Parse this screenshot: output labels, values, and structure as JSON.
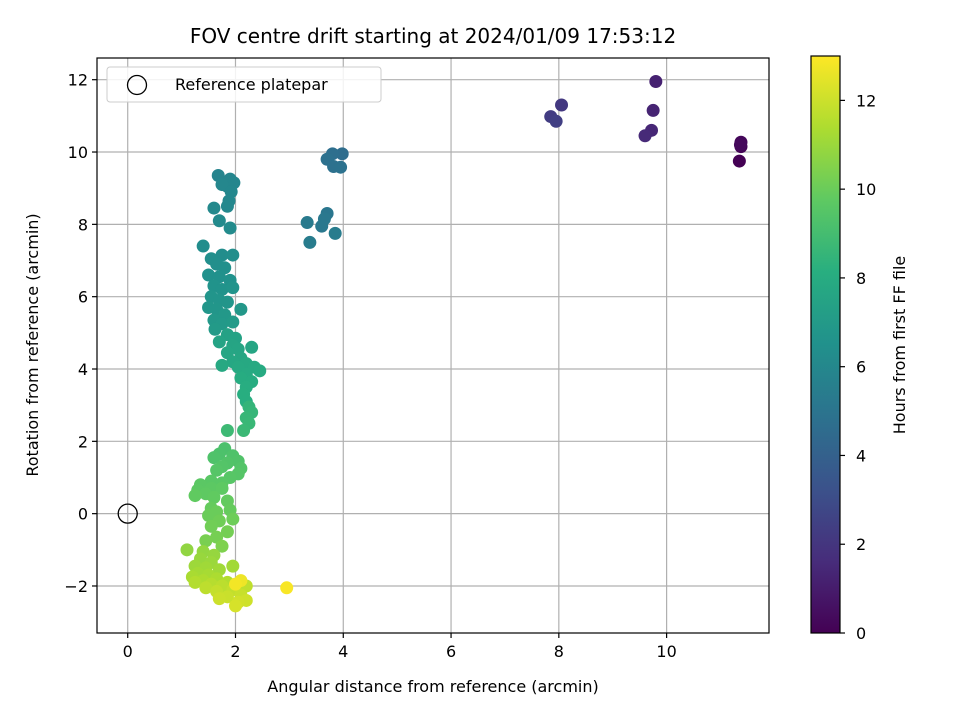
{
  "chart_data": {
    "type": "scatter",
    "title": "FOV centre drift starting at 2024/01/09 17:53:12",
    "xlabel": "Angular distance from reference (arcmin)",
    "ylabel": "Rotation from reference (arcmin)",
    "xlim": [
      -0.57,
      11.9
    ],
    "ylim": [
      -3.3,
      12.6
    ],
    "xticks": [
      "0",
      "2",
      "4",
      "6",
      "8",
      "10"
    ],
    "yticks": [
      "−2",
      "0",
      "2",
      "4",
      "6",
      "8",
      "10",
      "12"
    ],
    "grid": true,
    "legend": {
      "placement": "top-left",
      "entries": [
        "Reference platepar"
      ]
    },
    "reference_point": {
      "x": 0,
      "y": 0,
      "marker": "open-circle"
    },
    "colorbar": {
      "label": "Hours from first FF file",
      "min": 0,
      "max": 13,
      "ticks": [
        "0",
        "2",
        "4",
        "6",
        "8",
        "10",
        "12"
      ],
      "colormap": "viridis"
    },
    "series": [
      {
        "points": [
          [
            11.35,
            9.75,
            0.0
          ],
          [
            11.38,
            10.15,
            0.1
          ],
          [
            11.38,
            10.27,
            0.2
          ],
          [
            11.37,
            10.2,
            0.3
          ],
          [
            9.8,
            11.95,
            1.2
          ],
          [
            9.75,
            11.15,
            1.3
          ],
          [
            9.72,
            10.6,
            1.4
          ],
          [
            9.6,
            10.45,
            1.5
          ],
          [
            8.05,
            11.3,
            2.1
          ],
          [
            7.85,
            10.98,
            2.3
          ],
          [
            7.95,
            10.85,
            2.4
          ],
          [
            3.98,
            9.95,
            4.6
          ],
          [
            3.8,
            9.95,
            4.7
          ],
          [
            3.7,
            9.8,
            4.8
          ],
          [
            3.82,
            9.6,
            4.8
          ],
          [
            3.95,
            9.58,
            4.9
          ],
          [
            3.7,
            8.3,
            5.1
          ],
          [
            3.65,
            8.15,
            5.2
          ],
          [
            3.6,
            7.95,
            5.2
          ],
          [
            3.33,
            8.05,
            5.3
          ],
          [
            3.38,
            7.5,
            5.4
          ],
          [
            3.85,
            7.75,
            5.4
          ],
          [
            1.68,
            9.35,
            5.8
          ],
          [
            1.9,
            9.25,
            5.85
          ],
          [
            1.97,
            9.15,
            5.9
          ],
          [
            1.85,
            9.05,
            5.9
          ],
          [
            1.75,
            9.1,
            5.95
          ],
          [
            1.92,
            8.9,
            6.0
          ],
          [
            1.88,
            8.65,
            6.0
          ],
          [
            1.85,
            8.5,
            6.05
          ],
          [
            1.6,
            8.45,
            6.1
          ],
          [
            1.7,
            8.1,
            6.15
          ],
          [
            1.9,
            7.9,
            6.2
          ],
          [
            1.4,
            7.4,
            6.3
          ],
          [
            1.75,
            7.15,
            6.3
          ],
          [
            1.95,
            7.15,
            6.35
          ],
          [
            1.55,
            7.05,
            6.4
          ],
          [
            1.65,
            6.9,
            6.4
          ],
          [
            1.8,
            6.8,
            6.45
          ],
          [
            1.5,
            6.6,
            6.5
          ],
          [
            1.7,
            6.55,
            6.5
          ],
          [
            1.9,
            6.45,
            6.55
          ],
          [
            1.6,
            6.3,
            6.6
          ],
          [
            1.75,
            6.2,
            6.6
          ],
          [
            1.95,
            6.25,
            6.65
          ],
          [
            1.55,
            6.0,
            6.7
          ],
          [
            1.7,
            5.9,
            6.7
          ],
          [
            1.85,
            5.85,
            6.75
          ],
          [
            1.5,
            5.7,
            6.8
          ],
          [
            1.65,
            5.65,
            6.8
          ],
          [
            2.1,
            5.65,
            6.85
          ],
          [
            1.8,
            5.5,
            6.9
          ],
          [
            1.6,
            5.35,
            6.9
          ],
          [
            1.75,
            5.25,
            6.95
          ],
          [
            1.95,
            5.3,
            7.0
          ],
          [
            1.62,
            5.1,
            7.0
          ],
          [
            1.85,
            4.95,
            7.4
          ],
          [
            2.0,
            4.85,
            7.45
          ],
          [
            1.7,
            4.75,
            7.5
          ],
          [
            1.95,
            4.65,
            7.55
          ],
          [
            2.05,
            4.55,
            7.6
          ],
          [
            2.3,
            4.6,
            7.6
          ],
          [
            1.85,
            4.45,
            7.65
          ],
          [
            2.1,
            4.3,
            7.7
          ],
          [
            1.95,
            4.2,
            7.75
          ],
          [
            2.2,
            4.15,
            7.8
          ],
          [
            1.75,
            4.1,
            7.8
          ],
          [
            2.05,
            4.05,
            7.85
          ],
          [
            2.35,
            4.05,
            7.85
          ],
          [
            2.45,
            3.95,
            7.9
          ],
          [
            2.2,
            3.85,
            7.9
          ],
          [
            2.1,
            3.75,
            8.0
          ],
          [
            2.3,
            3.65,
            8.0
          ],
          [
            2.2,
            3.5,
            8.05
          ],
          [
            2.15,
            3.3,
            8.1
          ],
          [
            2.2,
            3.1,
            8.1
          ],
          [
            2.25,
            2.95,
            8.5
          ],
          [
            2.3,
            2.8,
            8.55
          ],
          [
            2.2,
            2.65,
            8.6
          ],
          [
            2.25,
            2.5,
            8.65
          ],
          [
            2.15,
            2.3,
            8.7
          ],
          [
            1.85,
            2.3,
            8.8
          ],
          [
            1.8,
            1.8,
            9.2
          ],
          [
            1.7,
            1.65,
            9.25
          ],
          [
            1.95,
            1.6,
            9.3
          ],
          [
            1.6,
            1.55,
            9.3
          ],
          [
            2.05,
            1.45,
            9.35
          ],
          [
            1.85,
            1.4,
            9.4
          ],
          [
            1.75,
            1.3,
            9.45
          ],
          [
            2.1,
            1.25,
            9.45
          ],
          [
            1.65,
            1.2,
            9.5
          ],
          [
            2.05,
            1.1,
            9.5
          ],
          [
            1.9,
            1.0,
            9.55
          ],
          [
            1.55,
            0.9,
            9.6
          ],
          [
            1.75,
            0.85,
            9.6
          ],
          [
            1.35,
            0.8,
            9.65
          ],
          [
            1.3,
            0.65,
            9.7
          ],
          [
            1.55,
            0.7,
            9.7
          ],
          [
            1.75,
            0.7,
            9.75
          ],
          [
            1.45,
            0.55,
            9.75
          ],
          [
            1.25,
            0.5,
            9.8
          ],
          [
            1.6,
            0.45,
            9.8
          ],
          [
            1.85,
            0.35,
            9.85
          ],
          [
            1.55,
            0.15,
            9.9
          ],
          [
            1.9,
            0.1,
            9.9
          ],
          [
            1.65,
            0.05,
            10.0
          ],
          [
            1.5,
            -0.05,
            10.0
          ],
          [
            1.95,
            -0.15,
            10.05
          ],
          [
            1.7,
            -0.2,
            10.1
          ],
          [
            1.55,
            -0.35,
            10.15
          ],
          [
            1.85,
            -0.5,
            10.2
          ],
          [
            1.65,
            -0.65,
            10.25
          ],
          [
            1.45,
            -0.75,
            10.3
          ],
          [
            1.75,
            -0.9,
            10.4
          ],
          [
            1.1,
            -1.0,
            10.8
          ],
          [
            1.4,
            -1.05,
            10.85
          ],
          [
            1.6,
            -1.15,
            10.9
          ],
          [
            1.35,
            -1.25,
            10.95
          ],
          [
            1.55,
            -1.35,
            11.0
          ],
          [
            1.25,
            -1.45,
            11.05
          ],
          [
            1.45,
            -1.5,
            11.1
          ],
          [
            1.7,
            -1.55,
            11.1
          ],
          [
            1.95,
            -1.45,
            11.15
          ],
          [
            1.3,
            -1.65,
            11.2
          ],
          [
            1.5,
            -1.7,
            11.25
          ],
          [
            1.2,
            -1.75,
            11.3
          ],
          [
            1.65,
            -1.8,
            11.35
          ],
          [
            1.4,
            -1.85,
            11.4
          ],
          [
            1.85,
            -1.9,
            11.45
          ],
          [
            1.25,
            -1.9,
            11.5
          ],
          [
            1.55,
            -1.95,
            11.55
          ],
          [
            2.05,
            -1.95,
            11.6
          ],
          [
            1.75,
            -2.0,
            11.65
          ],
          [
            1.45,
            -2.05,
            11.7
          ],
          [
            2.2,
            -2.0,
            11.75
          ],
          [
            1.95,
            -2.1,
            11.8
          ],
          [
            1.65,
            -2.15,
            11.85
          ],
          [
            2.1,
            -2.25,
            11.9
          ],
          [
            1.85,
            -2.3,
            11.95
          ],
          [
            1.7,
            -2.35,
            12.0
          ],
          [
            2.2,
            -2.4,
            12.05
          ],
          [
            2.05,
            -2.45,
            12.1
          ],
          [
            2.0,
            -2.55,
            12.2
          ],
          [
            2.1,
            -1.85,
            12.7
          ],
          [
            2.0,
            -1.95,
            12.8
          ],
          [
            2.95,
            -2.05,
            12.9
          ]
        ]
      }
    ]
  }
}
